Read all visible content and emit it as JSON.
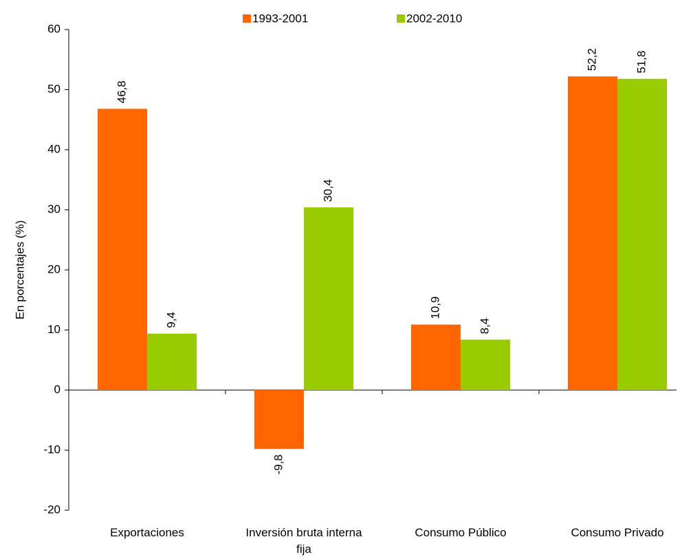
{
  "chart_data": {
    "type": "bar",
    "y_label": "En porcentajes (%)",
    "categories": [
      "Exportaciones",
      "Inversión bruta interna fija",
      "Consumo Público",
      "Consumo Privado"
    ],
    "series": [
      {
        "name": "1993-2001",
        "color": "#ff6600",
        "values": [
          46.8,
          -9.8,
          10.9,
          52.2
        ],
        "value_labels": [
          "46,8",
          "-9,8",
          "10,9",
          "52,2"
        ]
      },
      {
        "name": "2002-2010",
        "color": "#99cc00",
        "values": [
          9.4,
          30.4,
          8.4,
          51.8
        ],
        "value_labels": [
          "9,4",
          "30,4",
          "8,4",
          "51,8"
        ]
      }
    ],
    "ylim": [
      -20,
      60
    ],
    "yticks": [
      -20,
      -10,
      0,
      10,
      20,
      30,
      40,
      50,
      60
    ],
    "grid": false,
    "legend": "top"
  }
}
